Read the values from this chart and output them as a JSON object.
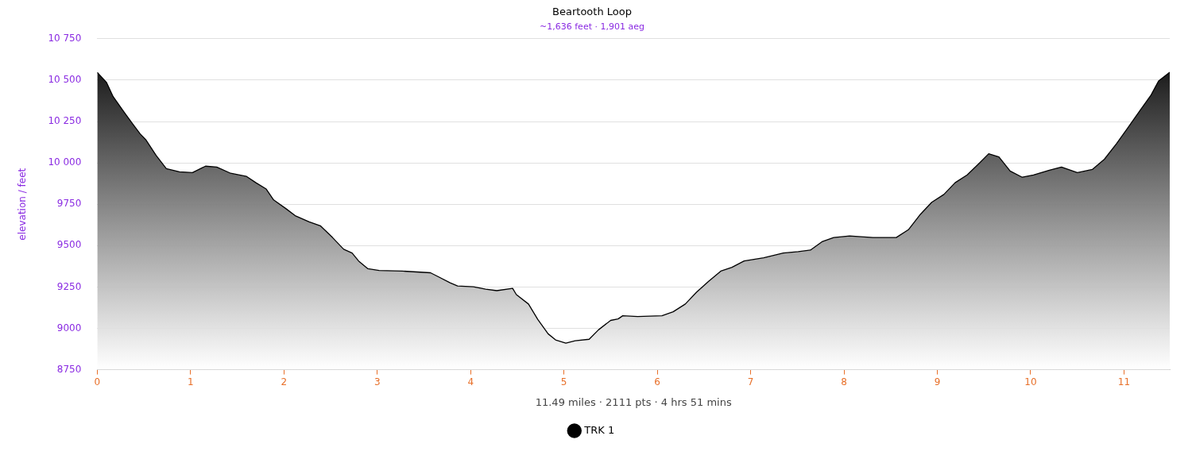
{
  "chart_data": {
    "type": "area",
    "title": "Beartooth Loop",
    "subtitle": "~1,636 feet · 1,901 aeg",
    "ylabel": "elevation / feet",
    "annotations": [
      "11.49 miles · 2111 pts · 4 hrs 51 mins"
    ],
    "xlim": [
      0,
      11.49
    ],
    "xticks": [
      0,
      1,
      2,
      3,
      4,
      5,
      6,
      7,
      8,
      9,
      10,
      11
    ],
    "ylim": [
      8750,
      10750
    ],
    "yticks": [
      8750,
      9000,
      9250,
      9500,
      9750,
      {
        "value": 10000,
        "label": "10 000"
      },
      {
        "value": 10250,
        "label": "10 250"
      },
      {
        "value": 10500,
        "label": "10 500"
      },
      {
        "value": 10750,
        "label": "10 750"
      }
    ],
    "grid": "y",
    "legend": "bottom",
    "x": [
      0,
      0.1,
      0.17,
      0.29,
      0.38,
      0.46,
      0.52,
      0.63,
      0.74,
      0.88,
      1.02,
      1.16,
      1.28,
      1.43,
      1.6,
      1.7,
      1.81,
      1.89,
      2.02,
      2.12,
      2.27,
      2.39,
      2.52,
      2.64,
      2.73,
      2.8,
      2.9,
      3.02,
      3.27,
      3.57,
      3.65,
      3.78,
      3.86,
      4.03,
      4.16,
      4.28,
      4.45,
      4.49,
      4.62,
      4.72,
      4.83,
      4.91,
      5.02,
      5.12,
      5.27,
      5.37,
      5.5,
      5.58,
      5.63,
      5.79,
      6.05,
      6.17,
      6.3,
      6.42,
      6.55,
      6.68,
      6.8,
      6.93,
      7.14,
      7.35,
      7.51,
      7.64,
      7.77,
      7.89,
      8.06,
      8.31,
      8.56,
      8.69,
      8.82,
      8.94,
      9.07,
      9.19,
      9.32,
      9.45,
      9.55,
      9.66,
      9.78,
      9.91,
      10.03,
      10.2,
      10.33,
      10.5,
      10.66,
      10.79,
      10.92,
      11.04,
      11.17,
      11.29,
      11.37,
      11.49
    ],
    "series": [
      {
        "name": "TRK 1",
        "color": "#000000",
        "values": [
          10547,
          10485,
          10400,
          10305,
          10235,
          10175,
          10140,
          10045,
          9965,
          9946,
          9941,
          9980,
          9975,
          9937,
          9918,
          9880,
          9842,
          9776,
          9724,
          9681,
          9644,
          9620,
          9549,
          9478,
          9455,
          9407,
          9360,
          9350,
          9346,
          9336,
          9313,
          9275,
          9256,
          9251,
          9237,
          9228,
          9242,
          9204,
          9147,
          9053,
          8967,
          8930,
          8911,
          8925,
          8934,
          8991,
          9048,
          9057,
          9076,
          9071,
          9076,
          9100,
          9147,
          9218,
          9284,
          9346,
          9369,
          9407,
          9426,
          9455,
          9464,
          9473,
          9525,
          9549,
          9558,
          9549,
          9549,
          9596,
          9690,
          9762,
          9809,
          9880,
          9927,
          9998,
          10055,
          10036,
          9951,
          9913,
          9927,
          9956,
          9975,
          9941,
          9960,
          10022,
          10116,
          10211,
          10315,
          10410,
          10495,
          10547
        ]
      }
    ]
  }
}
